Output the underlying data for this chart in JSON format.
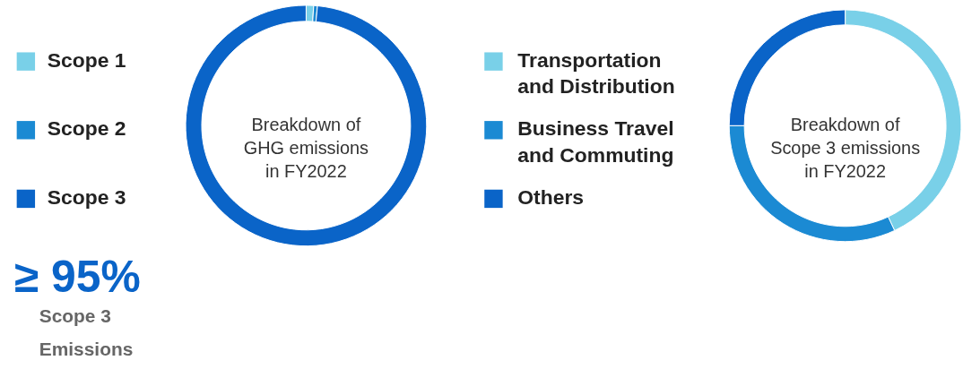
{
  "chart_data": [
    {
      "type": "donut",
      "title": "Breakdown of GHG emissions in FY2022",
      "categories": [
        "Scope 1",
        "Scope 2",
        "Scope 3"
      ],
      "values": [
        1,
        0.5,
        98.5
      ],
      "colors": [
        "#79d0e8",
        "#1b8ad3",
        "#0a64c8"
      ],
      "legend": "left",
      "annotations": [
        "≥ 95%",
        "Scope 3 Emissions"
      ]
    },
    {
      "type": "donut",
      "title": "Breakdown of Scope 3 emissions in FY2022",
      "categories": [
        "Transportation and Distribution",
        "Business Travel and Commuting",
        "Others"
      ],
      "values": [
        43,
        32,
        25
      ],
      "colors": [
        "#79d0e8",
        "#1b8ad3",
        "#0a64c8"
      ],
      "legend": "left"
    }
  ]
}
